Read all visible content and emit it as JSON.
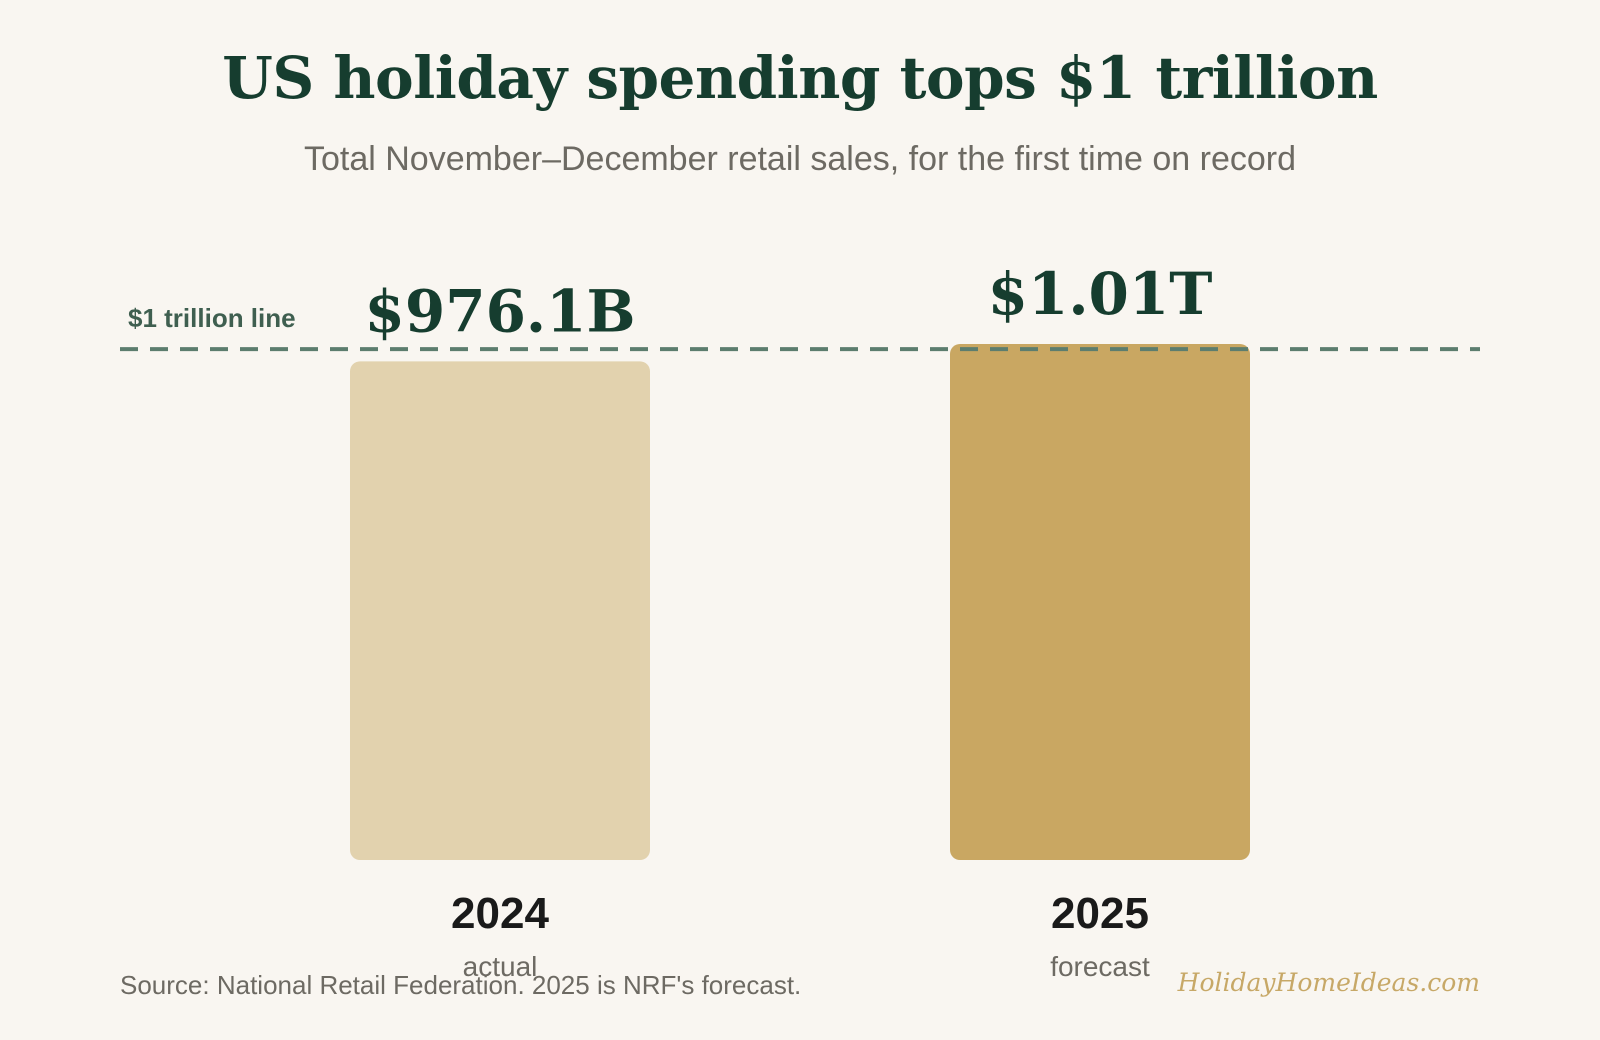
{
  "header": {
    "title": "US holiday spending tops $1 trillion",
    "subtitle": "Total November–December retail sales, for the first time on record"
  },
  "chart_data": {
    "type": "bar",
    "title": "US holiday spending tops $1 trillion",
    "subtitle": "Total November–December retail sales, for the first time on record",
    "categories": [
      "2024",
      "2025"
    ],
    "sublabels": [
      "actual",
      "forecast"
    ],
    "values": [
      976.1,
      1010
    ],
    "unit": "billion USD",
    "data_labels": [
      "$976.1B",
      "$1.01T"
    ],
    "bar_colors": [
      "#e2d2ae",
      "#c9a762"
    ],
    "reference_line": {
      "value": 1000,
      "label": "$1 trillion line",
      "color": "#5c7d6e",
      "style": "dashed"
    },
    "ylim": [
      0,
      1010
    ],
    "grid": false,
    "legend": "none"
  },
  "footer": {
    "source": "Source: National Retail Federation. 2025 is NRF's forecast.",
    "brand": "HolidayHomeIdeas.com"
  },
  "colors": {
    "background": "#f9f6f1",
    "title": "#163d2f",
    "text_muted": "#6d6a63",
    "year_label": "#1a1a1a"
  }
}
